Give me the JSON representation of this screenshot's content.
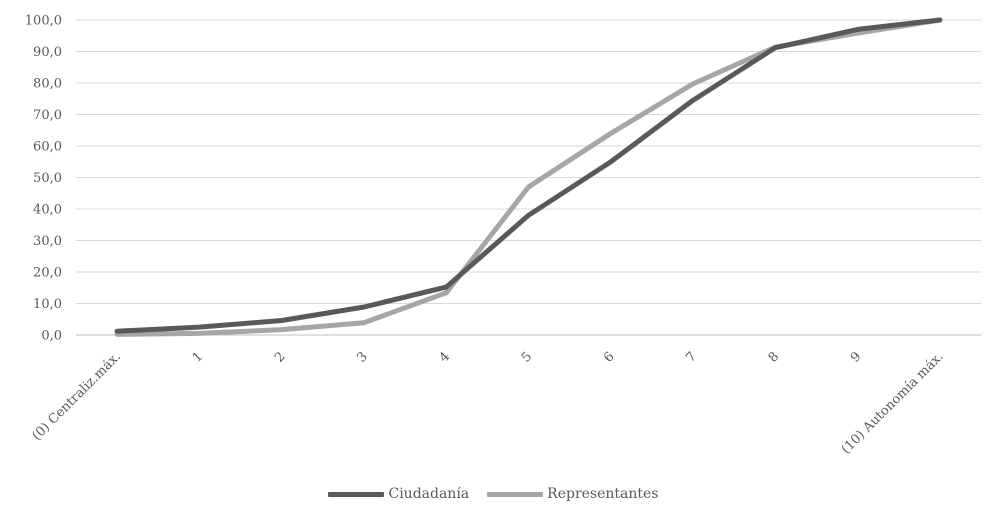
{
  "chart_data": {
    "type": "line",
    "title": "",
    "xlabel": "",
    "ylabel": "",
    "categories": [
      "(0) Centraliz.máx.",
      "1",
      "2",
      "3",
      "4",
      "5",
      "6",
      "7",
      "8",
      "9",
      "(10) Autonomía máx."
    ],
    "ylim": [
      0,
      100
    ],
    "ytick_step": 10,
    "ytick_labels": [
      "0,0",
      "10,0",
      "20,0",
      "30,0",
      "40,0",
      "50,0",
      "60,0",
      "70,0",
      "80,0",
      "90,0",
      "100,0"
    ],
    "grid": true,
    "legend_position": "bottom",
    "series": [
      {
        "name": "Ciudadanía",
        "color": "#595959",
        "values": [
          1.2,
          2.5,
          4.6,
          8.9,
          15.2,
          38.0,
          55.0,
          74.5,
          91.2,
          97.0,
          100.0
        ]
      },
      {
        "name": "Representantes",
        "color": "#a6a6a6",
        "values": [
          0.2,
          0.5,
          1.7,
          3.9,
          13.4,
          47.0,
          64.0,
          79.7,
          91.4,
          95.8,
          100.0
        ]
      }
    ]
  }
}
